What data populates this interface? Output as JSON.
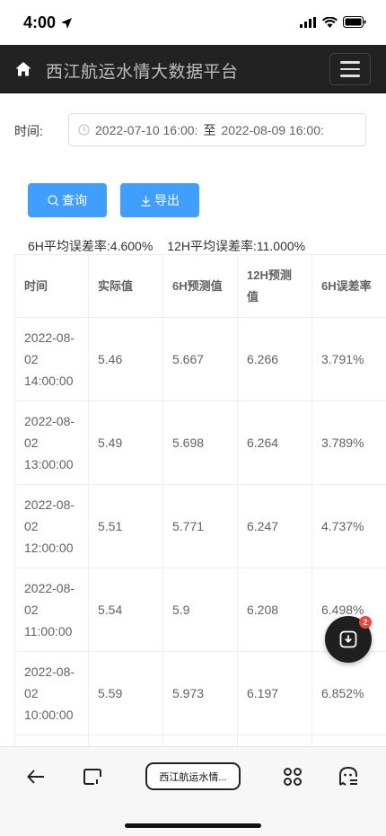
{
  "status_bar": {
    "time": "4:00"
  },
  "navbar": {
    "title": "西江航运水情大数据平台"
  },
  "filter": {
    "label": "时间:",
    "start": "2022-07-10 16:00:",
    "separator": "至",
    "end": "2022-08-09 16:00:"
  },
  "actions": {
    "query_label": "查询",
    "export_label": "导出"
  },
  "stats": {
    "h6_label": "6H平均误差率:",
    "h6_value": "4.600%",
    "h12_label": "12H平均误差率:",
    "h12_value": "11.000%"
  },
  "table": {
    "headers": [
      "时间",
      "实际值",
      "6H预测值",
      "12H预测值",
      "6H误差率"
    ],
    "rows": [
      [
        "2022-08-02 14:00:00",
        "5.46",
        "5.667",
        "6.266",
        "3.791%"
      ],
      [
        "2022-08-02 13:00:00",
        "5.49",
        "5.698",
        "6.264",
        "3.789%"
      ],
      [
        "2022-08-02 12:00:00",
        "5.51",
        "5.771",
        "6.247",
        "4.737%"
      ],
      [
        "2022-08-02 11:00:00",
        "5.54",
        "5.9",
        "6.208",
        "6.498%"
      ],
      [
        "2022-08-02 10:00:00",
        "5.59",
        "5.973",
        "6.197",
        "6.852%"
      ],
      [
        "",
        "",
        "",
        "",
        ""
      ]
    ]
  },
  "download_fab": {
    "badge": "2"
  },
  "browser_bar": {
    "tab_title": "西江航运水情..."
  },
  "colors": {
    "primary": "#409eff",
    "navbar": "#222222",
    "badge": "#f0453a"
  }
}
